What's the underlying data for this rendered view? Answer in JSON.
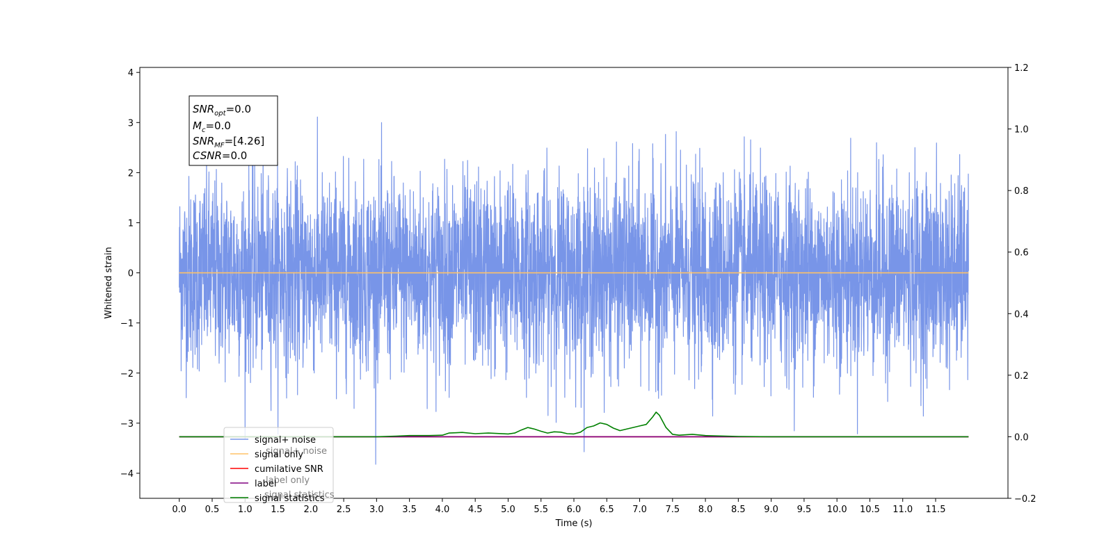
{
  "chart_data": {
    "type": "line",
    "xlabel": "Time (s)",
    "ylabel": "Whitened strain",
    "xlim": [
      -0.6,
      12.6
    ],
    "ylim": [
      -4.5,
      4.1
    ],
    "y2lim": [
      -0.2,
      1.2
    ],
    "x_ticks": [
      0.0,
      0.5,
      1.0,
      1.5,
      2.0,
      2.5,
      3.0,
      3.5,
      4.0,
      4.5,
      5.0,
      5.5,
      6.0,
      6.5,
      7.0,
      7.5,
      8.0,
      8.5,
      9.0,
      9.5,
      10.0,
      10.5,
      11.0,
      11.5
    ],
    "x_tick_labels": [
      "0.0",
      "0.5",
      "1.0",
      "1.5",
      "2.0",
      "2.5",
      "3.0",
      "3.5",
      "4.0",
      "4.5",
      "5.0",
      "5.5",
      "6.0",
      "6.5",
      "7.0",
      "7.5",
      "8.0",
      "8.5",
      "9.0",
      "9.5",
      "10.0",
      "10.5",
      "11.0",
      "11.5"
    ],
    "y_ticks": [
      -4,
      -3,
      -2,
      -1,
      0,
      1,
      2,
      3,
      4
    ],
    "y_tick_labels": [
      "−4",
      "−3",
      "−2",
      "−1",
      "0",
      "1",
      "2",
      "3",
      "4"
    ],
    "y2_ticks": [
      -0.2,
      0.0,
      0.2,
      0.4,
      0.6,
      0.8,
      1.0,
      1.2
    ],
    "y2_tick_labels": [
      "−0.2",
      "0.0",
      "0.2",
      "0.4",
      "0.6",
      "0.8",
      "1.0",
      "1.2"
    ],
    "grid": false,
    "legend_position": "bottom-left",
    "series": [
      {
        "name": "signal+ noise",
        "color": "#7895e8",
        "axis": "left",
        "kind": "noise",
        "x_range": [
          0.0,
          12.0
        ],
        "y_range": [
          -4.1,
          3.7
        ]
      },
      {
        "name": "signal only",
        "color": "#ffc266",
        "axis": "left",
        "x": [
          0.0,
          12.0
        ],
        "y": [
          0.0,
          0.0
        ]
      },
      {
        "name": "cumilative SNR",
        "color": "#ff0000",
        "axis": "right",
        "x": [
          0.0,
          12.0
        ],
        "y": [
          0.0,
          0.0
        ]
      },
      {
        "name": "label",
        "color": "#800080",
        "axis": "right",
        "x": [
          0.0,
          12.0
        ],
        "y": [
          0.0,
          0.0
        ]
      },
      {
        "name": "signal statistics",
        "color": "#008000",
        "axis": "right",
        "x": [
          0.0,
          3.0,
          3.3,
          3.5,
          3.8,
          4.0,
          4.1,
          4.2,
          4.3,
          4.5,
          4.7,
          5.0,
          5.1,
          5.2,
          5.3,
          5.4,
          5.5,
          5.6,
          5.7,
          5.8,
          5.9,
          6.0,
          6.1,
          6.2,
          6.3,
          6.4,
          6.5,
          6.6,
          6.7,
          6.8,
          6.9,
          7.0,
          7.1,
          7.2,
          7.25,
          7.3,
          7.4,
          7.5,
          7.6,
          7.8,
          8.0,
          8.5,
          9.0,
          10.0,
          12.0
        ],
        "y": [
          0.0,
          0.0,
          0.002,
          0.004,
          0.004,
          0.005,
          0.012,
          0.013,
          0.014,
          0.01,
          0.012,
          0.009,
          0.012,
          0.022,
          0.03,
          0.025,
          0.018,
          0.012,
          0.016,
          0.015,
          0.01,
          0.009,
          0.015,
          0.03,
          0.035,
          0.045,
          0.04,
          0.028,
          0.02,
          0.025,
          0.03,
          0.035,
          0.04,
          0.065,
          0.08,
          0.07,
          0.03,
          0.008,
          0.005,
          0.008,
          0.004,
          0.001,
          0.0,
          0.0,
          0.0
        ]
      }
    ],
    "annotation": {
      "snr_opt": "=0.0",
      "mc": "=0.0",
      "snr_mf": "=[4.26]",
      "csnr": "=0.0"
    },
    "legend_overlay_text": [
      "signal+ noise",
      "label only",
      "signal statistics"
    ]
  }
}
